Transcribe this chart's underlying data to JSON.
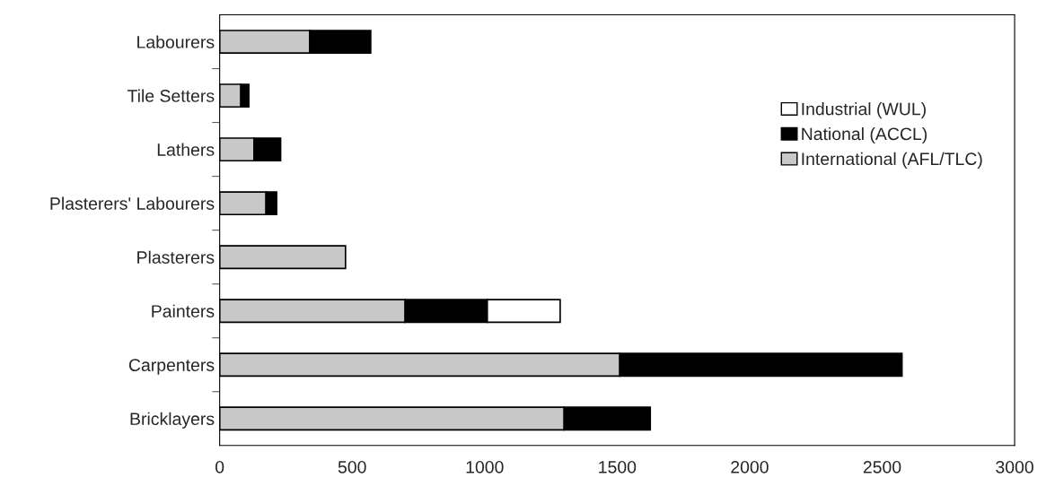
{
  "chart_data": {
    "type": "bar",
    "orientation": "horizontal",
    "stacked": true,
    "categories": [
      "Labourers",
      "Tile Setters",
      "Lathers",
      "Plasterers' Labourers",
      "Plasterers",
      "Painters",
      "Carpenters",
      "Bricklayers"
    ],
    "series": [
      {
        "name": "International (AFL/TLC)",
        "color": "#c8c8c8",
        "values": [
          340,
          80,
          130,
          175,
          475,
          700,
          1510,
          1300
        ]
      },
      {
        "name": "National (ACCL)",
        "color": "#000000",
        "values": [
          230,
          30,
          100,
          40,
          null,
          310,
          1065,
          325
        ]
      },
      {
        "name": "Industrial (WUL)",
        "color": "#ffffff",
        "values": [
          null,
          null,
          null,
          null,
          null,
          275,
          null,
          null
        ]
      }
    ],
    "xlim": [
      0,
      3000
    ],
    "xticks": [
      0,
      500,
      1000,
      1500,
      2000,
      2500,
      3000
    ],
    "grid": false,
    "legend": "right"
  }
}
